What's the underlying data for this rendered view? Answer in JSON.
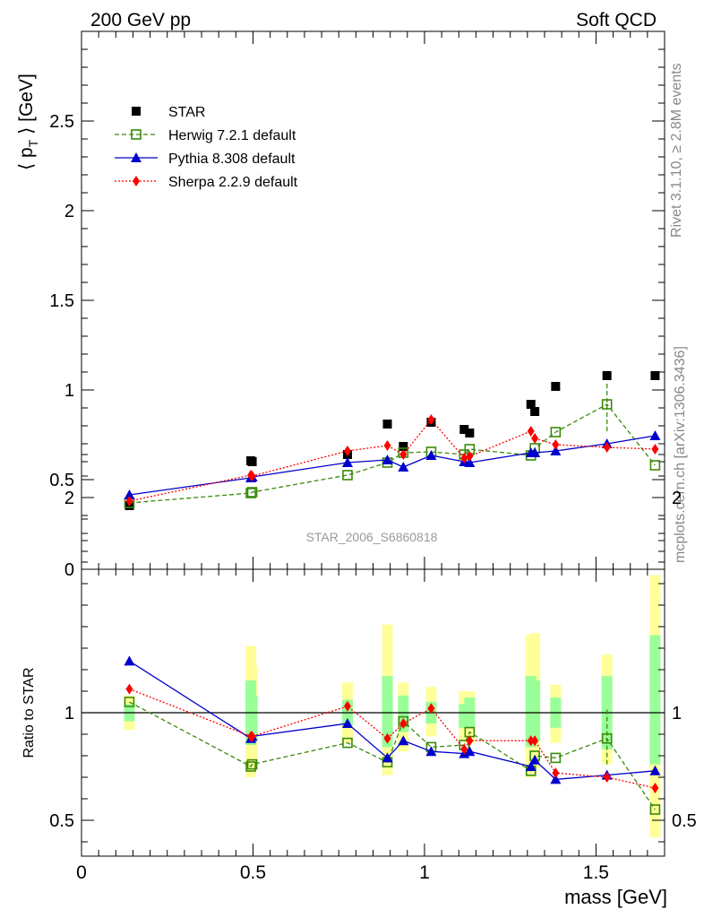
{
  "header": {
    "left": "200 GeV pp",
    "right": "Soft QCD"
  },
  "side_text": {
    "rivet": "Rivet 3.1.10, ≥ 2.8M events",
    "mcplots": "mcplots.cern.ch [arXiv:1306.3436]"
  },
  "watermark": "STAR_2006_S6860818",
  "chart_data": [
    {
      "type": "scatter",
      "panel": "main",
      "ylabel": "⟨ p",
      "ylabel_sub": "T",
      "ylabel_end": " ⟩ [GeV]",
      "xlim": [
        0,
        1.7
      ],
      "ylim": [
        0,
        3.0
      ],
      "yticks": [
        0,
        0.5,
        1,
        1.5,
        2,
        2.5
      ],
      "ytick_labels": [
        "0",
        "0.5",
        "1",
        "1.5",
        "2",
        "2.5"
      ],
      "legend": {
        "placement": "top-left"
      },
      "x": [
        0.1396,
        0.4937,
        0.4977,
        0.7755,
        0.8918,
        0.9383,
        1.0195,
        1.1157,
        1.1316,
        1.3102,
        1.3217,
        1.3823,
        1.532,
        1.6724
      ],
      "series": [
        {
          "name": "STAR",
          "color": "#000000",
          "marker": "square",
          "line": "none",
          "values": [
            0.355,
            0.605,
            0.6,
            0.64,
            0.81,
            0.685,
            0.82,
            0.78,
            0.76,
            0.92,
            0.88,
            1.02,
            1.08,
            1.08
          ]
        },
        {
          "name": "Herwig 7.2.1 default",
          "color": "#3a8a0a",
          "marker": "open-square",
          "line": "dashed",
          "values": [
            0.37,
            0.425,
            0.43,
            0.525,
            0.595,
            0.65,
            0.655,
            0.64,
            0.67,
            0.635,
            0.675,
            0.765,
            0.92,
            0.58
          ],
          "yerr_at": {
            "index": 12,
            "low": 0.77,
            "high": 1.05
          }
        },
        {
          "name": "Pythia 8.308 default",
          "color": "#0000cc",
          "marker": "triangle",
          "line": "solid",
          "values": [
            0.415,
            0.51,
            0.515,
            0.595,
            0.61,
            0.57,
            0.635,
            0.6,
            0.595,
            0.65,
            0.65,
            0.66,
            0.7,
            0.745
          ]
        },
        {
          "name": "Sherpa 2.2.9 default",
          "color": "#ff0000",
          "marker": "diamond",
          "line": "dotted",
          "values": [
            0.38,
            0.525,
            0.52,
            0.66,
            0.69,
            0.64,
            0.835,
            0.62,
            0.63,
            0.77,
            0.73,
            0.695,
            0.68,
            0.67
          ]
        }
      ]
    },
    {
      "type": "scatter",
      "panel": "ratio",
      "xlabel": "mass [GeV]",
      "ylabel": "Ratio to STAR",
      "xlim": [
        0,
        1.7
      ],
      "ylim": [
        0.35,
        2.3
      ],
      "xticks": [
        0,
        0.5,
        1,
        1.5
      ],
      "xtick_labels": [
        "0",
        "0.5",
        "1",
        "1.5"
      ],
      "yticks": [
        0.5,
        1,
        2
      ],
      "ytick_labels": [
        "0.5",
        "1",
        "2"
      ],
      "reference_line": 1,
      "x": [
        0.1396,
        0.4937,
        0.4977,
        0.7755,
        0.8918,
        0.9383,
        1.0195,
        1.1157,
        1.1316,
        1.3102,
        1.3217,
        1.3823,
        1.532,
        1.6724
      ],
      "bands": {
        "green": [
          [
            0.96,
            1.04
          ],
          [
            0.85,
            1.15
          ],
          [
            0.87,
            1.08
          ],
          [
            0.94,
            1.06
          ],
          [
            0.84,
            1.17
          ],
          [
            0.91,
            1.08
          ],
          [
            0.95,
            1.05
          ],
          [
            0.93,
            1.04
          ],
          [
            0.93,
            1.07
          ],
          [
            0.84,
            1.17
          ],
          [
            0.87,
            1.15
          ],
          [
            0.93,
            1.07
          ],
          [
            0.83,
            1.17
          ],
          [
            0.76,
            1.36
          ]
        ],
        "yellow": [
          [
            0.92,
            1.08
          ],
          [
            0.7,
            1.31
          ],
          [
            0.78,
            1.22
          ],
          [
            0.86,
            1.14
          ],
          [
            0.71,
            1.41
          ],
          [
            0.82,
            1.14
          ],
          [
            0.89,
            1.12
          ],
          [
            0.87,
            1.1
          ],
          [
            0.86,
            1.1
          ],
          [
            0.7,
            1.36
          ],
          [
            0.74,
            1.37
          ],
          [
            0.86,
            1.13
          ],
          [
            0.76,
            1.27
          ],
          [
            0.42,
            1.64
          ]
        ]
      },
      "series": [
        {
          "name": "Herwig 7.2.1 default",
          "color": "#3a8a0a",
          "marker": "open-square",
          "line": "dashed",
          "values": [
            1.05,
            0.75,
            0.76,
            0.86,
            0.77,
            0.96,
            0.84,
            0.85,
            0.91,
            0.73,
            0.8,
            0.79,
            0.88,
            0.55
          ],
          "yerr_at": {
            "index": 12,
            "low": 0.76,
            "high": 1.02
          }
        },
        {
          "name": "Pythia 8.308 default",
          "color": "#0000cc",
          "marker": "triangle",
          "line": "solid",
          "values": [
            1.24,
            0.88,
            0.89,
            0.95,
            0.79,
            0.87,
            0.82,
            0.81,
            0.82,
            0.75,
            0.78,
            0.69,
            0.71,
            0.73
          ]
        },
        {
          "name": "Sherpa 2.2.9 default",
          "color": "#ff0000",
          "marker": "diamond",
          "line": "dotted",
          "values": [
            1.11,
            0.89,
            0.89,
            1.03,
            0.88,
            0.95,
            1.02,
            0.83,
            0.87,
            0.87,
            0.87,
            0.72,
            0.7,
            0.65
          ]
        }
      ]
    }
  ]
}
